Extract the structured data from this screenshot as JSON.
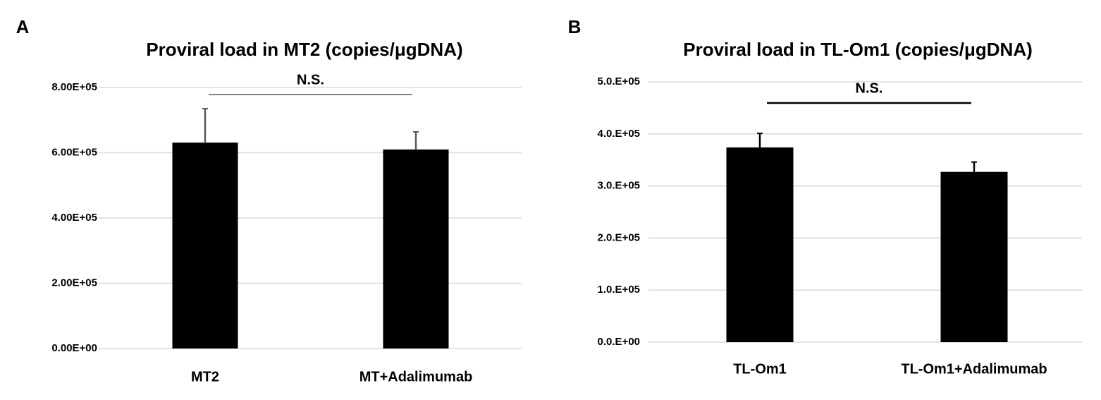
{
  "chart_data": [
    {
      "type": "bar",
      "panel_label": "A",
      "title": "Proviral load in MT2 (copies/μgDNA)",
      "annotation": "N.S.",
      "categories": [
        "MT2",
        "MT+Adalimumab"
      ],
      "values": [
        631000,
        610000
      ],
      "errors": [
        104000,
        54000
      ],
      "color": "#000000",
      "error_color": "#595959",
      "ylim": [
        0,
        800000
      ],
      "yticks": [
        {
          "value": 0,
          "label": "0.00E+00"
        },
        {
          "value": 200000,
          "label": "2.00E+05"
        },
        {
          "value": 400000,
          "label": "4.00E+05"
        },
        {
          "value": 600000,
          "label": "6.00E+05"
        },
        {
          "value": 800000,
          "label": "8.00E+05"
        }
      ],
      "grid": true
    },
    {
      "type": "bar",
      "panel_label": "B",
      "title": "Proviral load in TL-Om1 (copies/μgDNA)",
      "annotation": "N.S.",
      "categories": [
        "TL-Om1",
        "TL-Om1+Adalimumab"
      ],
      "values": [
        374000,
        327000
      ],
      "errors": [
        27000,
        19000
      ],
      "color": "#000000",
      "error_color": "#000000",
      "ylim": [
        0,
        500000
      ],
      "yticks": [
        {
          "value": 0,
          "label": "0.0.E+00"
        },
        {
          "value": 100000,
          "label": "1.0.E+05"
        },
        {
          "value": 200000,
          "label": "2.0.E+05"
        },
        {
          "value": 300000,
          "label": "3.0.E+05"
        },
        {
          "value": 400000,
          "label": "4.0.E+05"
        },
        {
          "value": 500000,
          "label": "5.0.E+05"
        }
      ],
      "grid": true
    }
  ]
}
